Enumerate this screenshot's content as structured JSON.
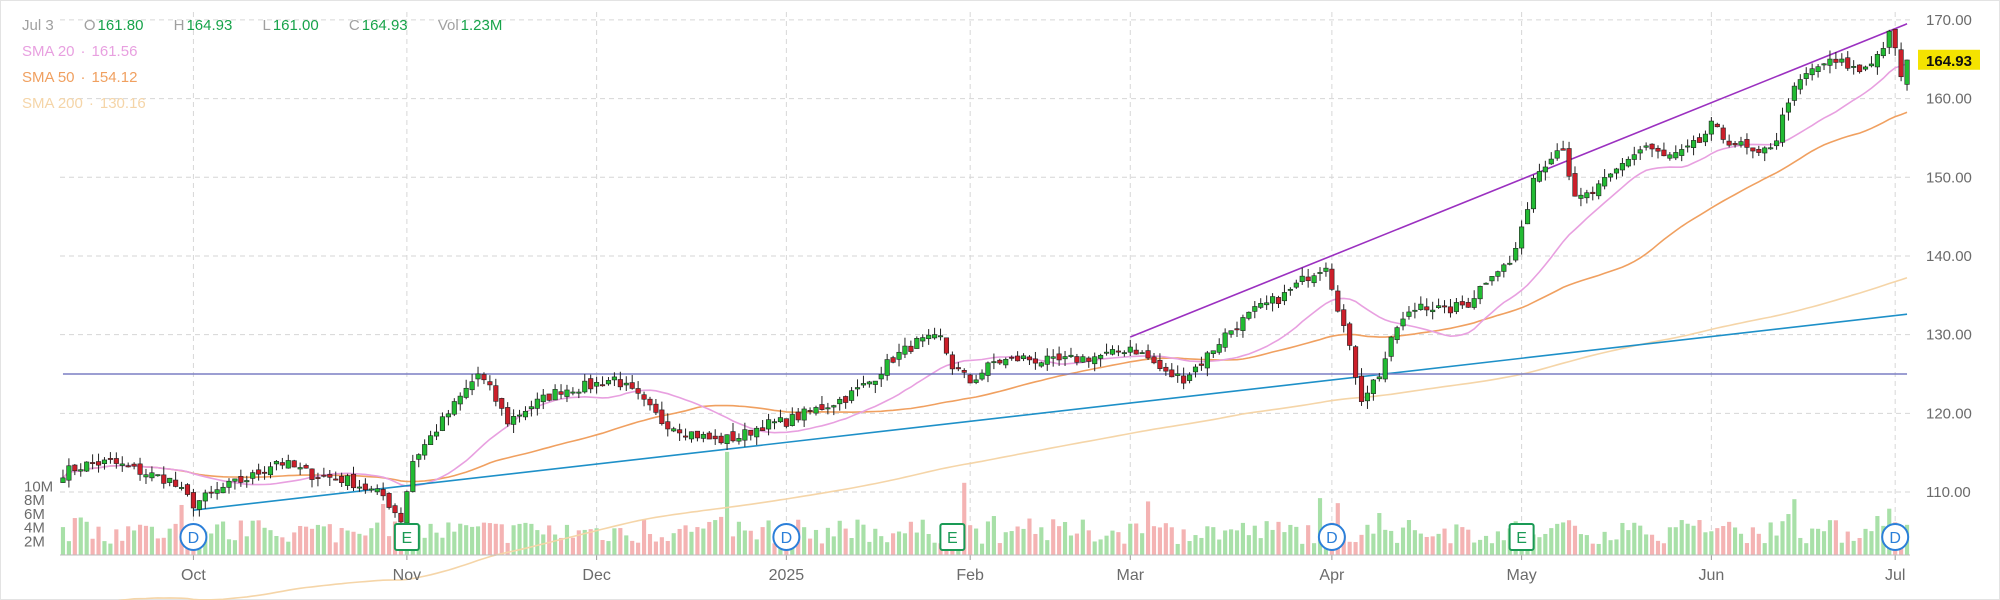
{
  "chart_data": {
    "type": "candlestick",
    "header": {
      "date": "Jul 3",
      "open": {
        "label": "O",
        "value": "161.80"
      },
      "high": {
        "label": "H",
        "value": "164.93"
      },
      "low": {
        "label": "L",
        "value": "161.00"
      },
      "close": {
        "label": "C",
        "value": "164.93"
      },
      "volume": {
        "label": "Vol",
        "value": "1.23M"
      }
    },
    "indicators": [
      {
        "name": "SMA 20",
        "value": "161.56",
        "color": "#e8a0e0"
      },
      {
        "name": "SMA 50",
        "value": "154.12",
        "color": "#f0a060"
      },
      {
        "name": "SMA 200",
        "value": "130.16",
        "color": "#f5d5a8"
      }
    ],
    "last_price": "164.93",
    "price_axis": {
      "min": 102,
      "max": 171,
      "ticks": [
        "110.00",
        "120.00",
        "130.00",
        "140.00",
        "150.00",
        "160.00",
        "170.00"
      ]
    },
    "volume_axis": {
      "max_millions": 16,
      "ticks": [
        "2M",
        "4M",
        "6M",
        "8M",
        "10M"
      ]
    },
    "x_axis": {
      "labels": [
        {
          "text": "Oct",
          "day": 22
        },
        {
          "text": "Nov",
          "day": 58
        },
        {
          "text": "Dec",
          "day": 90
        },
        {
          "text": "2025",
          "day": 122
        },
        {
          "text": "Feb",
          "day": 153
        },
        {
          "text": "Mar",
          "day": 180
        },
        {
          "text": "Apr",
          "day": 214
        },
        {
          "text": "May",
          "day": 246
        },
        {
          "text": "Jun",
          "day": 278
        },
        {
          "text": "Jul",
          "day": 309
        }
      ]
    },
    "events": [
      {
        "label": "D",
        "type": "dividend",
        "day": 22
      },
      {
        "label": "E",
        "type": "earnings",
        "day": 58
      },
      {
        "label": "D",
        "type": "dividend",
        "day": 122
      },
      {
        "label": "E",
        "type": "earnings",
        "day": 150
      },
      {
        "label": "D",
        "type": "dividend",
        "day": 214
      },
      {
        "label": "E",
        "type": "earnings",
        "day": 246
      },
      {
        "label": "D",
        "type": "dividend",
        "day": 309
      }
    ],
    "trendlines": [
      {
        "color": "#1e90c8",
        "from": {
          "day": 22,
          "price": 107.7
        },
        "to": {
          "day": 311,
          "price": 132.6
        }
      },
      {
        "color": "#9b30c0",
        "from": {
          "day": 180,
          "price": 129.7
        },
        "to": {
          "day": 311,
          "price": 169.5
        }
      },
      {
        "color": "#7b7fc4",
        "from": {
          "day": 0,
          "price": 125
        },
        "to": {
          "day": 311,
          "price": 125
        }
      }
    ],
    "close_anchors": [
      [
        0,
        112.5
      ],
      [
        4,
        113.5
      ],
      [
        8,
        113.8
      ],
      [
        13,
        112.6
      ],
      [
        18,
        111.5
      ],
      [
        22,
        108.5
      ],
      [
        27,
        110.5
      ],
      [
        32,
        112
      ],
      [
        36,
        114
      ],
      [
        42,
        112.2
      ],
      [
        48,
        111.5
      ],
      [
        54,
        109.5
      ],
      [
        57,
        106.5
      ],
      [
        59,
        114
      ],
      [
        62,
        117
      ],
      [
        66,
        121
      ],
      [
        70,
        125
      ],
      [
        72,
        123
      ],
      [
        75,
        119
      ],
      [
        79,
        121
      ],
      [
        84,
        123
      ],
      [
        89,
        123.5
      ],
      [
        93,
        124.5
      ],
      [
        97,
        122
      ],
      [
        101,
        119
      ],
      [
        106,
        117.5
      ],
      [
        110,
        116.5
      ],
      [
        114,
        117
      ],
      [
        118,
        118.5
      ],
      [
        122,
        119
      ],
      [
        127,
        120.5
      ],
      [
        132,
        122
      ],
      [
        136,
        124
      ],
      [
        140,
        127
      ],
      [
        144,
        129
      ],
      [
        148,
        129.5
      ],
      [
        150,
        126
      ],
      [
        153,
        124
      ],
      [
        157,
        126.5
      ],
      [
        162,
        127
      ],
      [
        167,
        126.5
      ],
      [
        172,
        127
      ],
      [
        177,
        127.5
      ],
      [
        180,
        128.5
      ],
      [
        183,
        127
      ],
      [
        186,
        125
      ],
      [
        189,
        124.5
      ],
      [
        192,
        126.5
      ],
      [
        196,
        130
      ],
      [
        201,
        133
      ],
      [
        206,
        135
      ],
      [
        210,
        137.5
      ],
      [
        213,
        139
      ],
      [
        216,
        131
      ],
      [
        219,
        122
      ],
      [
        222,
        125
      ],
      [
        225,
        131
      ],
      [
        229,
        134
      ],
      [
        233,
        133
      ],
      [
        237,
        134
      ],
      [
        241,
        138
      ],
      [
        244,
        139
      ],
      [
        246,
        143
      ],
      [
        248,
        150
      ],
      [
        251,
        153
      ],
      [
        253,
        154
      ],
      [
        255,
        147
      ],
      [
        258,
        148
      ],
      [
        261,
        150
      ],
      [
        264,
        152.5
      ],
      [
        267,
        154
      ],
      [
        270,
        152.5
      ],
      [
        273,
        153
      ],
      [
        276,
        154.5
      ],
      [
        278,
        156.5
      ],
      [
        280,
        155
      ],
      [
        283,
        154
      ],
      [
        286,
        152.5
      ],
      [
        289,
        155
      ],
      [
        291,
        160
      ],
      [
        294,
        163
      ],
      [
        297,
        164.5
      ],
      [
        300,
        164.5
      ],
      [
        303,
        163.5
      ],
      [
        306,
        165.5
      ],
      [
        308,
        168
      ],
      [
        309,
        166
      ],
      [
        310,
        163
      ],
      [
        311,
        164.9
      ]
    ],
    "volume_spikes": [
      {
        "day": 112,
        "volume_millions": 15
      },
      {
        "day": 152,
        "volume_millions": 10.5
      }
    ]
  }
}
